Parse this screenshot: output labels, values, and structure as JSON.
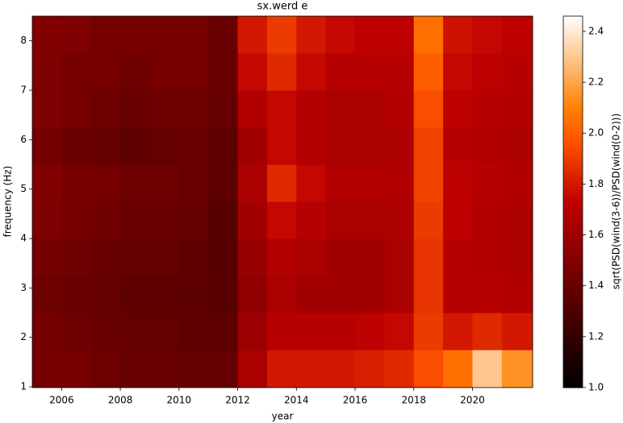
{
  "chart_data": {
    "type": "heatmap",
    "title": "sx.werd e",
    "x_label": "year",
    "y_label": "frequency (Hz)",
    "colorbar_label": "sqrt(PSD(wind(3-6))/PSD(wind(0-2)))",
    "colormap": "gist_heat",
    "clim": [
      1.0,
      2.46
    ],
    "cticks": [
      {
        "value": 1.0,
        "label": "1.0"
      },
      1.2,
      1.4,
      1.6,
      1.8,
      {
        "value": 2.0,
        "label": "2.0"
      },
      2.2,
      2.4
    ],
    "x": [
      2005,
      2006,
      2007,
      2008,
      2009,
      2010,
      2011,
      2012,
      2013,
      2014,
      2015,
      2016,
      2017,
      2018,
      2019,
      2020,
      2021,
      2022.05
    ],
    "y": [
      0.985,
      1.75,
      2.5,
      3.25,
      4,
      4.75,
      5.5,
      6.25,
      7,
      7.75,
      8.5
    ],
    "xlim": [
      2005,
      2022.05
    ],
    "ylim": [
      0.985,
      8.5
    ],
    "xticks": [
      2006,
      2008,
      2010,
      2012,
      2014,
      2016,
      2018,
      2020
    ],
    "yticks": [
      1,
      2,
      3,
      4,
      5,
      6,
      7,
      8
    ],
    "values": [
      [
        1.45,
        1.45,
        1.42,
        1.4,
        1.4,
        1.38,
        1.38,
        1.65,
        1.8,
        1.8,
        1.8,
        1.82,
        1.85,
        1.95,
        2.05,
        2.3,
        2.15
      ],
      [
        1.45,
        1.42,
        1.4,
        1.38,
        1.38,
        1.36,
        1.36,
        1.6,
        1.7,
        1.7,
        1.7,
        1.72,
        1.75,
        1.9,
        1.8,
        1.85,
        1.8
      ],
      [
        1.42,
        1.4,
        1.38,
        1.36,
        1.36,
        1.35,
        1.34,
        1.55,
        1.65,
        1.62,
        1.62,
        1.62,
        1.65,
        1.88,
        1.7,
        1.7,
        1.68
      ],
      [
        1.45,
        1.42,
        1.4,
        1.38,
        1.38,
        1.36,
        1.33,
        1.58,
        1.68,
        1.65,
        1.62,
        1.62,
        1.65,
        1.88,
        1.7,
        1.68,
        1.66
      ],
      [
        1.48,
        1.45,
        1.43,
        1.4,
        1.4,
        1.38,
        1.33,
        1.62,
        1.75,
        1.7,
        1.65,
        1.65,
        1.66,
        1.9,
        1.72,
        1.68,
        1.66
      ],
      [
        1.5,
        1.45,
        1.45,
        1.42,
        1.42,
        1.4,
        1.35,
        1.65,
        1.85,
        1.75,
        1.68,
        1.68,
        1.68,
        1.92,
        1.72,
        1.7,
        1.68
      ],
      [
        1.45,
        1.4,
        1.38,
        1.36,
        1.38,
        1.4,
        1.35,
        1.62,
        1.75,
        1.68,
        1.65,
        1.65,
        1.66,
        1.92,
        1.7,
        1.68,
        1.66
      ],
      [
        1.48,
        1.45,
        1.42,
        1.4,
        1.42,
        1.42,
        1.38,
        1.68,
        1.75,
        1.68,
        1.65,
        1.65,
        1.68,
        1.95,
        1.72,
        1.7,
        1.68
      ],
      [
        1.48,
        1.45,
        1.45,
        1.42,
        1.45,
        1.45,
        1.4,
        1.75,
        1.85,
        1.75,
        1.7,
        1.7,
        1.7,
        2.0,
        1.75,
        1.72,
        1.7
      ],
      [
        1.5,
        1.48,
        1.45,
        1.45,
        1.45,
        1.45,
        1.4,
        1.8,
        1.9,
        1.8,
        1.75,
        1.72,
        1.72,
        2.05,
        1.78,
        1.75,
        1.72
      ]
    ]
  }
}
